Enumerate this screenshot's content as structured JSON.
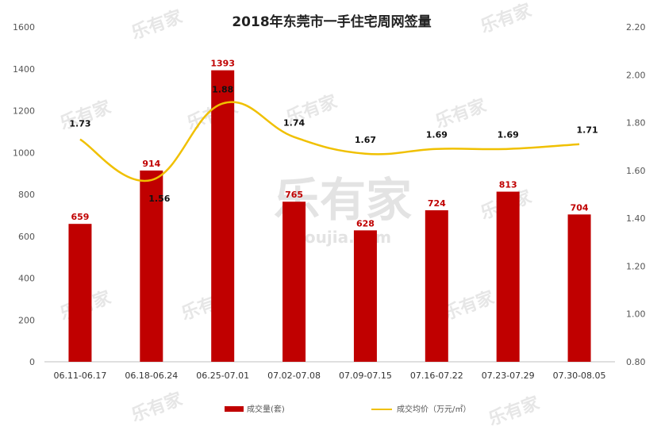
{
  "chart_data": {
    "type": "bar",
    "title": "2018年东莞市一手住宅周网签量",
    "categories": [
      "06.11-06.17",
      "06.18-06.24",
      "06.25-07.01",
      "07.02-07.08",
      "07.09-07.15",
      "07.16-07.22",
      "07.23-07.29",
      "07.30-08.05"
    ],
    "series": [
      {
        "name": "成交量(套)",
        "type": "bar",
        "axis": "left",
        "color": "#c00000",
        "values": [
          659,
          914,
          1393,
          765,
          628,
          724,
          813,
          704
        ]
      },
      {
        "name": "成交均价（万元/㎡）",
        "type": "line",
        "axis": "right",
        "color": "#f0c000",
        "values": [
          1.73,
          1.56,
          1.88,
          1.74,
          1.67,
          1.69,
          1.69,
          1.71
        ]
      }
    ],
    "y_left": {
      "lim": [
        0,
        1600
      ],
      "ticks": [
        "0",
        "200",
        "400",
        "600",
        "800",
        "1000",
        "1200",
        "1400",
        "1600"
      ]
    },
    "y_right": {
      "lim": [
        0.8,
        2.2
      ],
      "ticks": [
        "0.80",
        "1.00",
        "1.20",
        "1.40",
        "1.60",
        "1.80",
        "2.00",
        "2.20"
      ]
    },
    "grid": false,
    "legend": "bottom"
  },
  "watermark": {
    "logo": "乐有家",
    "url": "youjia.com"
  }
}
